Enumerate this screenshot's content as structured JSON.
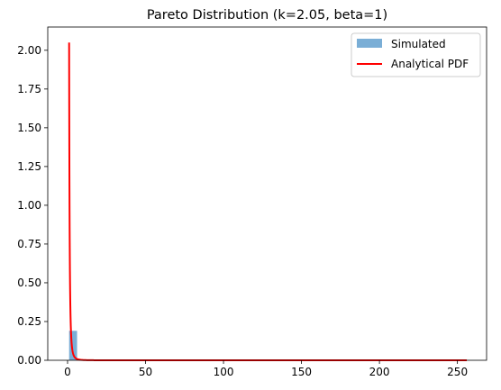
{
  "chart_data": {
    "type": "bar",
    "title": "Pareto Distribution (k=2.05, beta=1)",
    "xlabel": "",
    "ylabel": "",
    "xlim": [
      -12.7,
      268.7
    ],
    "ylim": [
      0,
      2.15
    ],
    "xticks": [
      0,
      50,
      100,
      150,
      200,
      250
    ],
    "yticks": [
      0.0,
      0.25,
      0.5,
      0.75,
      1.0,
      1.25,
      1.5,
      1.75,
      2.0
    ],
    "grid": false,
    "legend_position": "top-right",
    "legend": [
      "Simulated",
      "Analytical PDF"
    ],
    "colors": {
      "histogram": "#7aaed6",
      "pdf": "#ff0000"
    },
    "series": [
      {
        "name": "Simulated",
        "kind": "histogram",
        "bins": [
          {
            "x0": 1.0,
            "x1": 6.1,
            "value": 0.19
          },
          {
            "x0": 6.1,
            "x1": 11.2,
            "value": 0.0035
          },
          {
            "x0": 11.2,
            "x1": 16.3,
            "value": 0.0008
          },
          {
            "x0": 16.3,
            "x1": 21.4,
            "value": 0.0003
          },
          {
            "x0": 21.4,
            "x1": 26.5,
            "value": 0.0001
          }
        ]
      },
      {
        "name": "Analytical PDF",
        "kind": "line",
        "params": {
          "k": 2.05,
          "beta": 1
        },
        "x_range": [
          1,
          256
        ]
      }
    ]
  }
}
